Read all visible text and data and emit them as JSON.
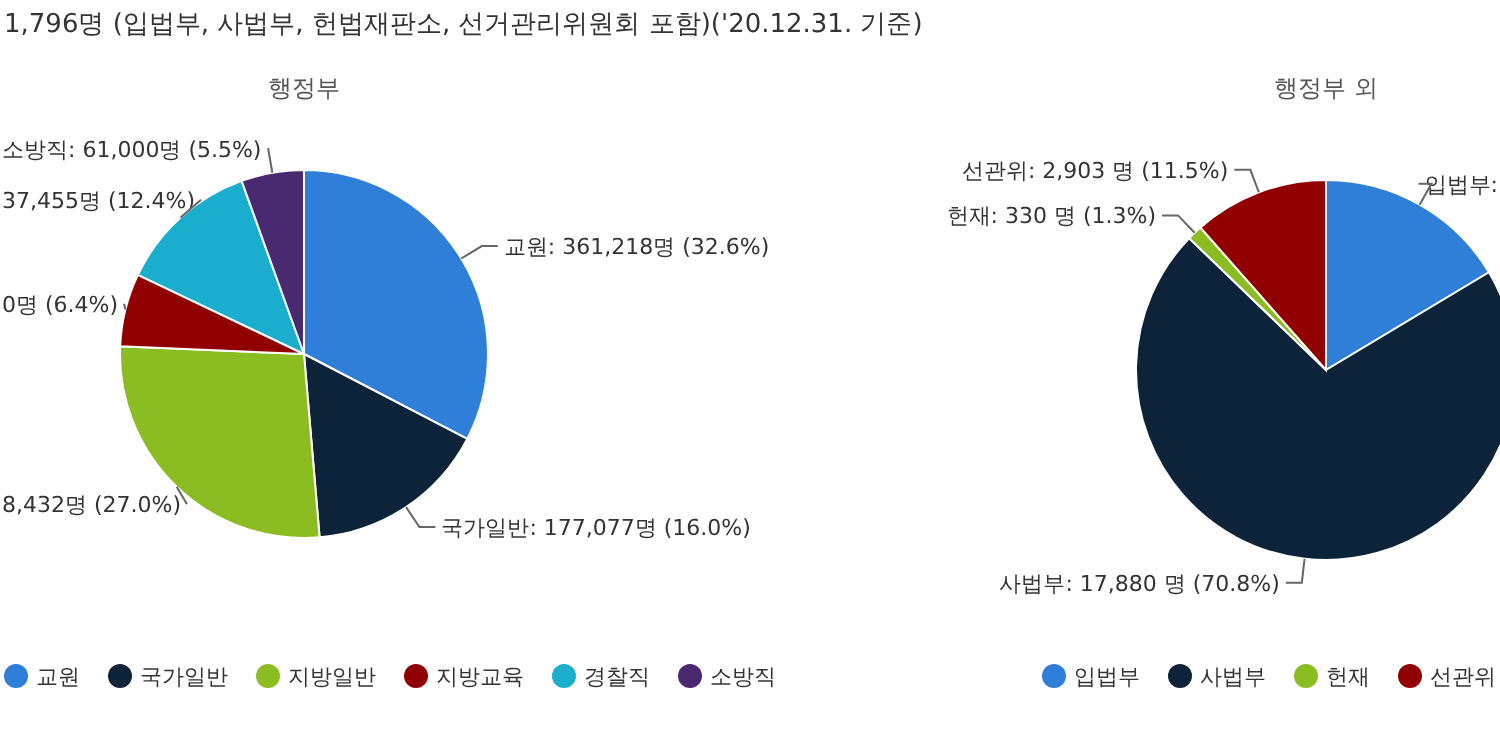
{
  "chart_data": [
    {
      "type": "pie",
      "title": "1,796명 (입법부, 사법부, 헌법재판소, 선거관리위원회 포함)('20.12.31. 기준)",
      "subtitle": "행정부",
      "categories": [
        "교원",
        "국가일반",
        "지방일반",
        "지방교육",
        "경찰직",
        "소방직"
      ],
      "values": [
        32.6,
        16.0,
        27.0,
        6.4,
        12.4,
        5.5
      ],
      "colors": [
        "#2f7ed8",
        "#0d233a",
        "#8bbc21",
        "#910000",
        "#1aadce",
        "#492970"
      ],
      "value_labels": [
        "교원: 361,218명 (32.6%)",
        "국가일반: 177,077명 (16.0%)",
        "8,432명 (27.0%)",
        "0명 (6.4%)",
        "37,455명 (12.4%)",
        "소방직: 61,000명 (5.5%)"
      ],
      "legend": "bottom"
    },
    {
      "type": "pie",
      "subtitle": "행정부 외",
      "categories": [
        "입법부",
        "사법부",
        "헌재",
        "선관위"
      ],
      "values": [
        16.4,
        70.8,
        1.3,
        11.5
      ],
      "colors": [
        "#2f7ed8",
        "#0d233a",
        "#8bbc21",
        "#910000"
      ],
      "value_labels": [
        "입법부:",
        "사법부: 17,880 명 (70.8%)",
        "헌재: 330 명 (1.3%)",
        "선관위: 2,903 명 (11.5%)"
      ],
      "legend": "bottom"
    }
  ]
}
